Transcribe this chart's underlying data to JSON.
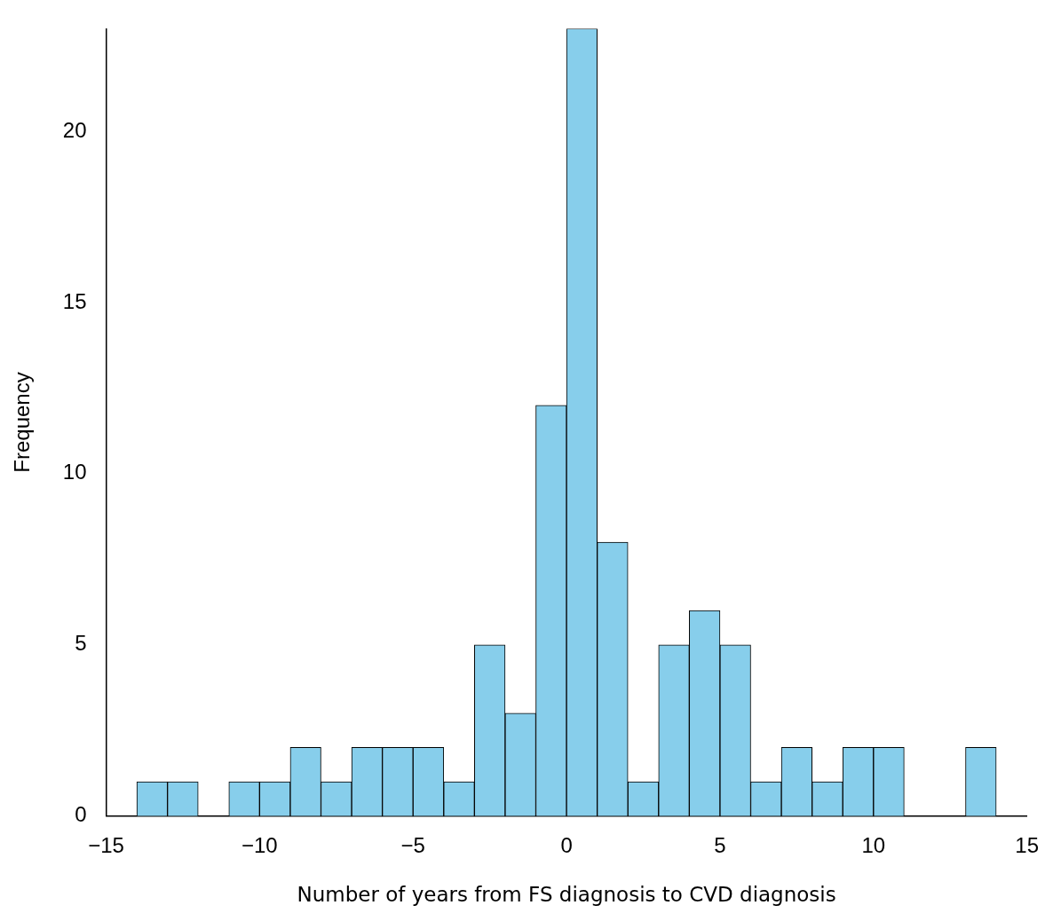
{
  "chart_data": {
    "type": "histogram",
    "xlabel": "Number of years from FS diagnosis to CVD diagnosis",
    "ylabel": "Frequency",
    "bins": [
      -14,
      -13,
      -12,
      -11,
      -10,
      -9,
      -8,
      -7,
      -6,
      -5,
      -4,
      -3,
      -2,
      -1,
      0,
      1,
      2,
      3,
      4,
      5,
      6,
      7,
      8,
      9,
      10,
      11,
      12,
      13,
      14
    ],
    "values": [
      1,
      1,
      0,
      1,
      1,
      2,
      1,
      2,
      2,
      2,
      1,
      5,
      3,
      12,
      23,
      8,
      1,
      5,
      6,
      5,
      1,
      2,
      1,
      2,
      2,
      0,
      0,
      2
    ],
    "color": "#87ceeb",
    "xlim": [
      -15,
      15
    ],
    "xticks": [
      {
        "value": -15,
        "label": "−15"
      },
      {
        "value": -10,
        "label": "−10"
      },
      {
        "value": -5,
        "label": "−5"
      },
      0,
      5,
      10,
      15
    ],
    "ylim": [
      0,
      23
    ],
    "yticks": [
      0,
      5,
      10,
      15,
      20
    ],
    "grid": false,
    "legend": false
  }
}
